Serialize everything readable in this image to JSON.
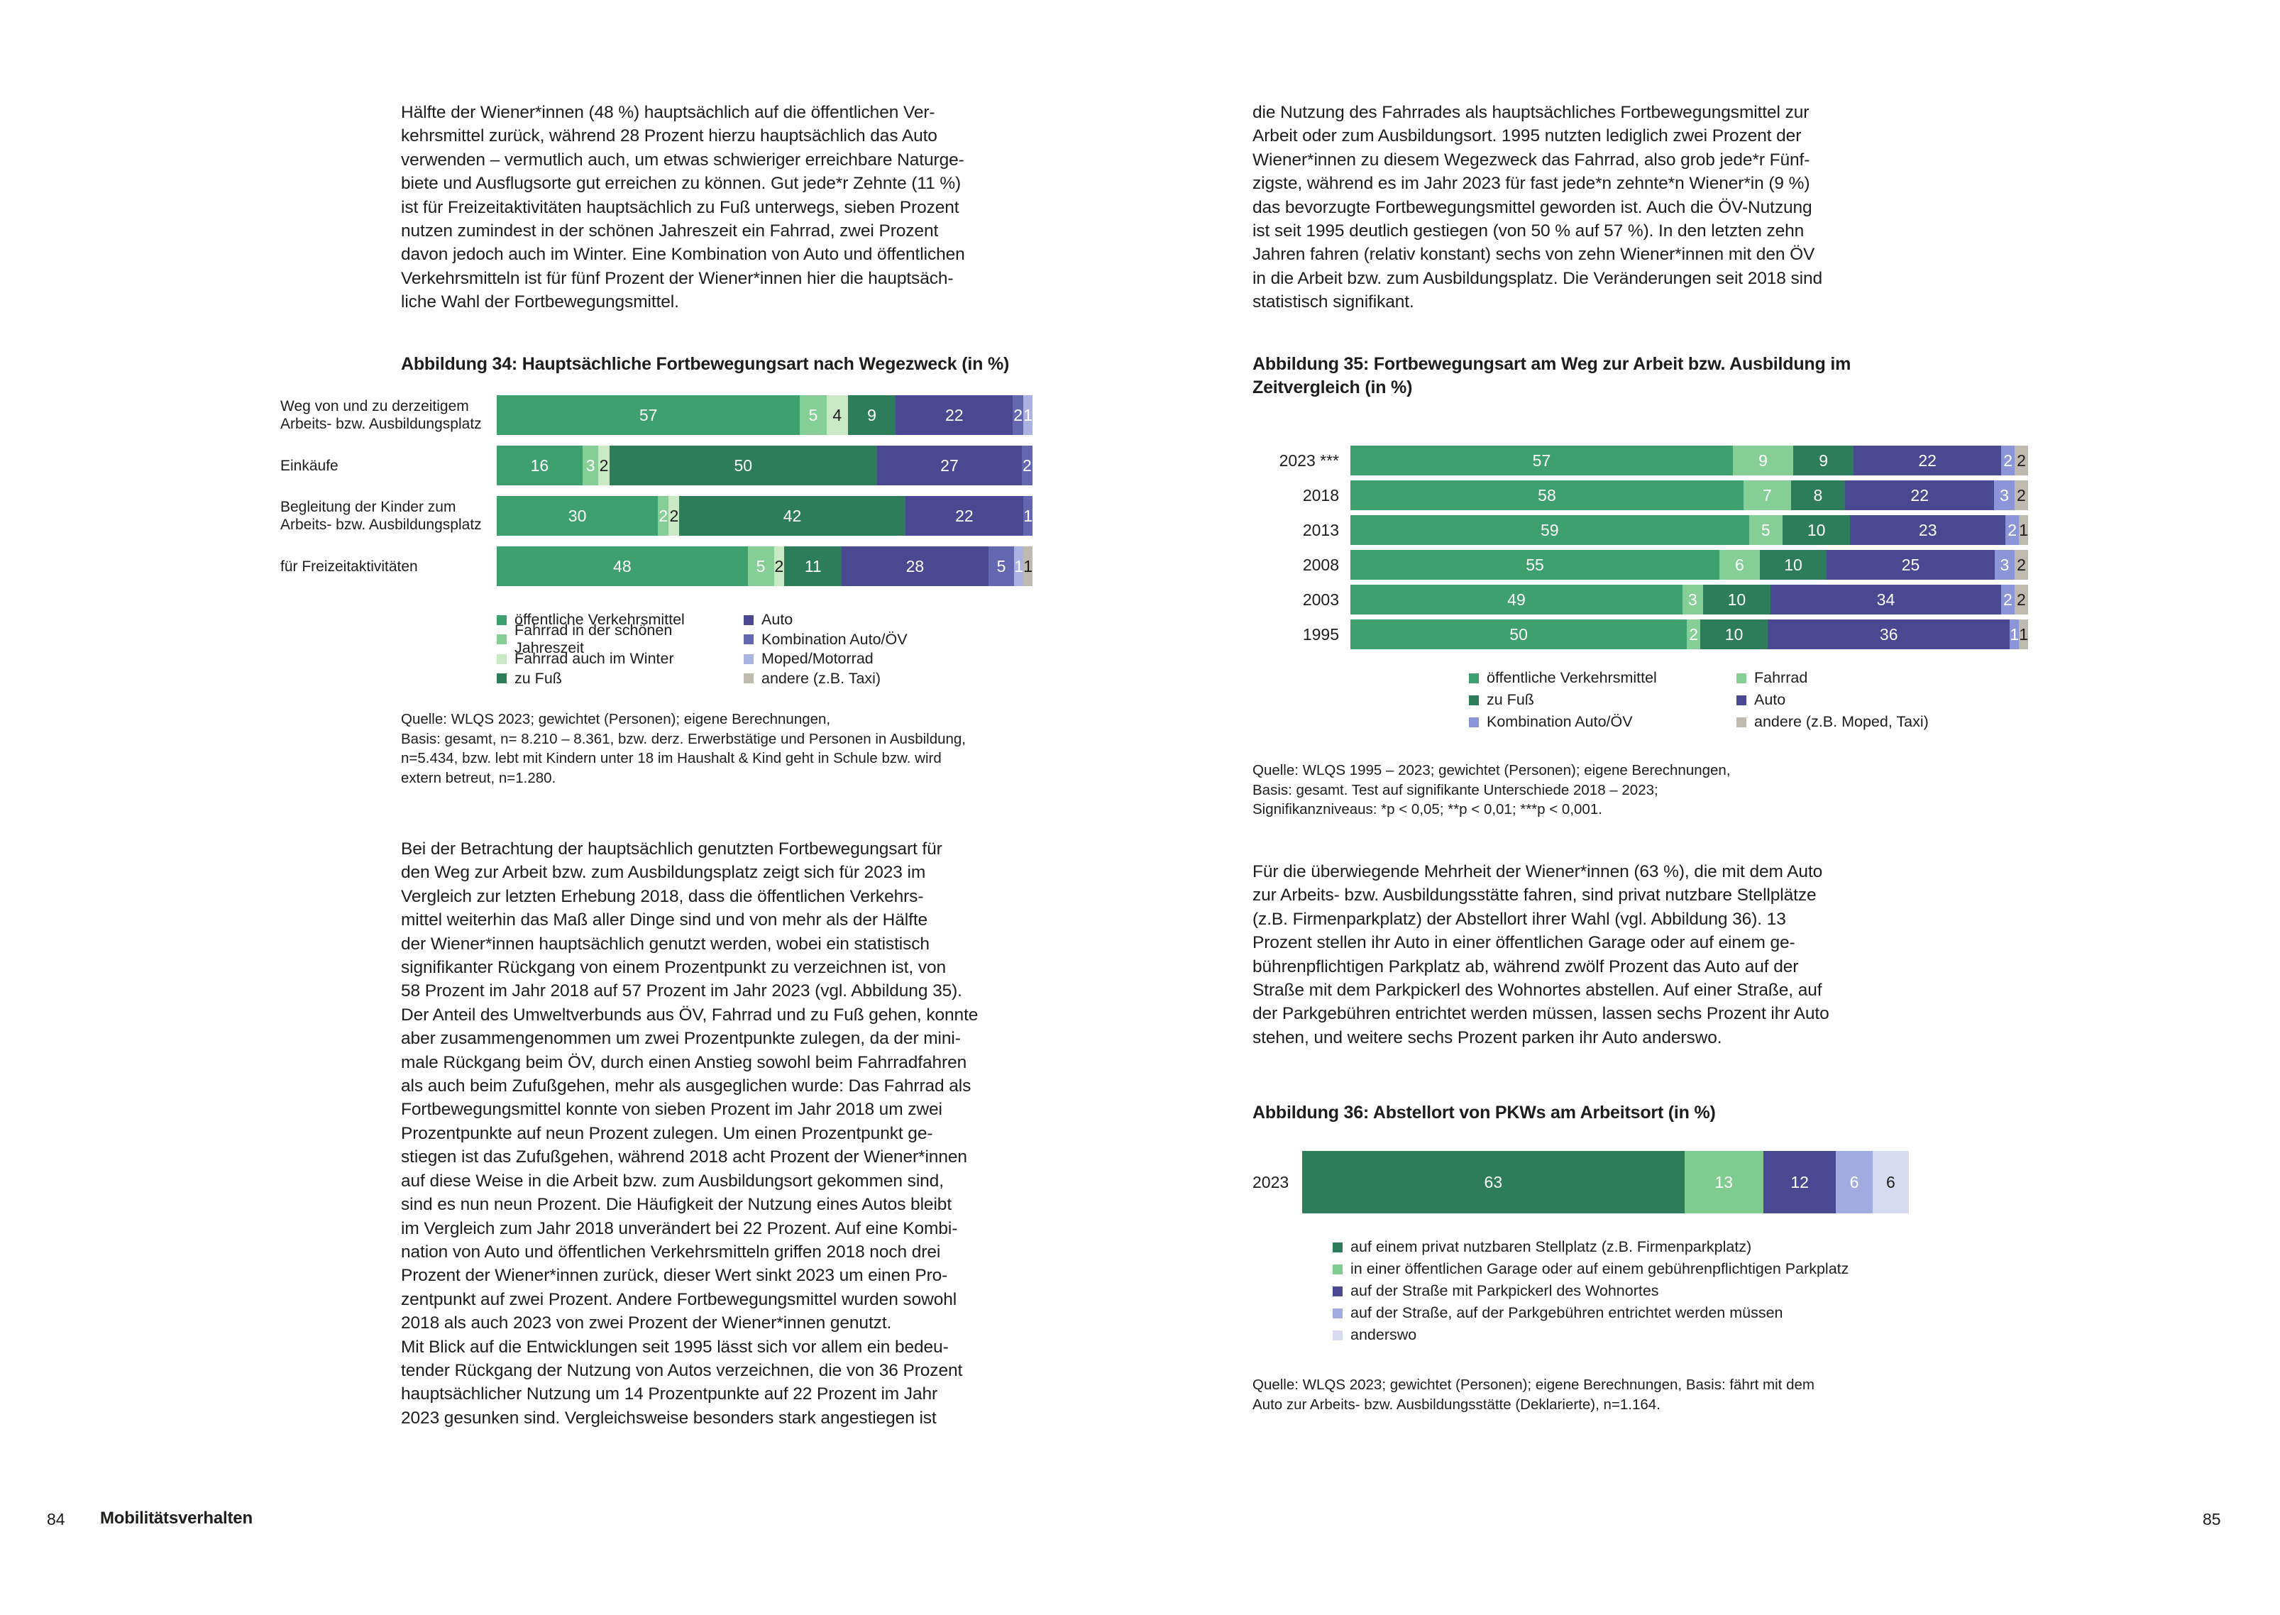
{
  "left_page": {
    "page_number": "84",
    "footer_label": "Mobilitätsverhalten",
    "paragraph1": "Hälfte der Wiener*innen (48 %) hauptsächlich auf die öffentlichen Ver-\nkehrsmittel zurück, während 28 Prozent hierzu hauptsächlich das Auto\nverwenden – vermutlich auch, um etwas schwieriger erreichbare Naturge-\nbiete und Ausflugsorte gut erreichen zu können. Gut jede*r Zehnte (11 %)\nist für Freizeitaktivitäten hauptsächlich zu Fuß unterwegs, sieben Prozent\nnutzen zumindest in der schönen Jahreszeit ein Fahrrad, zwei Prozent\ndavon jedoch auch im Winter. Eine Kombination von Auto und öffentlichen\nVerkehrsmitteln ist für fünf Prozent der Wiener*innen hier die hauptsäch-\nliche Wahl der Fortbewegungsmittel.",
    "paragraph2": "Bei der Betrachtung der hauptsächlich genutzten Fortbewegungsart für\nden Weg zur Arbeit bzw. zum Ausbildungsplatz zeigt sich für 2023 im\nVergleich zur letzten Erhebung 2018, dass die öffentlichen Verkehrs-\nmittel weiterhin das Maß aller Dinge sind und von mehr als der Hälfte\nder Wiener*innen hauptsächlich genutzt werden, wobei ein statistisch\nsignifikanter Rückgang von einem Prozentpunkt zu verzeichnen ist, von\n58 Prozent im Jahr 2018 auf 57 Prozent im Jahr 2023 (vgl. Abbildung 35).\nDer Anteil des Umweltverbunds aus ÖV, Fahrrad und zu Fuß gehen, konnte\naber zusammengenommen um zwei Prozentpunkte zulegen, da der mini-\nmale Rückgang beim ÖV, durch einen Anstieg sowohl beim Fahrradfahren\nals auch beim Zufußgehen, mehr als ausgeglichen wurde: Das Fahrrad als\nFortbewegungsmittel konnte von sieben Prozent im Jahr 2018 um zwei\nProzentpunkte auf neun Prozent zulegen. Um einen Prozentpunkt ge-\nstiegen ist das Zufußgehen, während 2018 acht Prozent der Wiener*innen\nauf diese Weise in die Arbeit bzw. zum Ausbildungsort gekommen sind,\nsind es nun neun Prozent. Die Häufigkeit der Nutzung eines Autos bleibt\nim Vergleich zum Jahr 2018 unverändert bei 22 Prozent. Auf eine Kombi-\nnation von Auto und öffentlichen Verkehrsmitteln griffen 2018 noch drei\nProzent der Wiener*innen zurück, dieser Wert sinkt 2023 um einen Pro-\nzentpunkt auf zwei Prozent. Andere Fortbewegungsmittel wurden sowohl\n2018 als auch 2023 von zwei Prozent der Wiener*innen genutzt.\nMit Blick auf die Entwicklungen seit 1995 lässt sich vor allem ein bedeu-\ntender Rückgang der Nutzung von Autos verzeichnen, die von 36 Prozent\nhauptsächlicher Nutzung um 14 Prozentpunkte auf 22 Prozent im Jahr\n2023 gesunken sind. Vergleichsweise besonders stark angestiegen ist",
    "figure34": {
      "title": "Abbildung 34: Hauptsächliche Fortbewegungsart nach Wegezweck (in %)",
      "categories": [
        {
          "label": "öffentliche Verkehrsmittel",
          "color": "#3EA06F",
          "text": "#ffffff"
        },
        {
          "label": "Fahrrad in der schönen Jahreszeit",
          "color": "#85CF96",
          "text": "#ffffff"
        },
        {
          "label": "Fahrrad auch im Winter",
          "color": "#C9E9C4",
          "text": "#1d1d1b"
        },
        {
          "label": "zu Fuß",
          "color": "#2E7D5A",
          "text": "#ffffff"
        },
        {
          "label": "Auto",
          "color": "#4A4891",
          "text": "#ffffff"
        },
        {
          "label": "Kombination Auto/ÖV",
          "color": "#6367AF",
          "text": "#ffffff"
        },
        {
          "label": "Moped/Motorrad",
          "color": "#A9B2E1",
          "text": "#ffffff"
        },
        {
          "label": "andere (z.B. Taxi)",
          "color": "#BEBAB0",
          "text": "#1d1d1b"
        }
      ],
      "rows": [
        {
          "label": "Weg von und zu derzeitigem\nArbeits- bzw. Ausbildungsplatz",
          "values": [
            57,
            5,
            4,
            9,
            22,
            2,
            1,
            0
          ]
        },
        {
          "label": "Einkäufe",
          "values": [
            16,
            3,
            2,
            50,
            27,
            2,
            0,
            0
          ]
        },
        {
          "label": "Begleitung der Kinder zum\nArbeits- bzw. Ausbildungsplatz",
          "values": [
            30,
            2,
            2,
            42,
            22,
            1,
            0,
            0
          ]
        },
        {
          "label": "für Freizeitaktivitäten",
          "values": [
            48,
            5,
            2,
            11,
            28,
            5,
            1,
            1
          ]
        }
      ],
      "source": "Quelle: WLQS 2023; gewichtet (Personen); eigene Berechnungen,\nBasis: gesamt, n= 8.210 – 8.361, bzw. derz. Erwerbstätige und Personen in Ausbildung,\nn=5.434, bzw. lebt mit Kindern unter 18 im Haushalt & Kind geht in Schule bzw. wird\nextern betreut, n=1.280."
    }
  },
  "right_page": {
    "page_number": "85",
    "paragraph1": "die Nutzung des Fahrrades als hauptsächliches Fortbewegungsmittel zur\nArbeit oder zum Ausbildungsort. 1995 nutzten lediglich zwei Prozent der\nWiener*innen zu diesem Wegezweck das Fahrrad, also grob jede*r Fünf-\nzigste, während es im Jahr 2023 für fast jede*n zehnte*n Wiener*in (9 %)\ndas bevorzugte Fortbewegungsmittel geworden ist. Auch die ÖV-Nutzung\nist seit 1995 deutlich gestiegen (von 50 % auf 57 %). In den letzten zehn\nJahren fahren (relativ konstant) sechs von zehn Wiener*innen mit den ÖV\nin die Arbeit bzw. zum Ausbildungsplatz. Die Veränderungen seit 2018 sind\nstatistisch signifikant.",
    "paragraph2": "Für die überwiegende Mehrheit der Wiener*innen (63 %), die mit dem Auto\nzur Arbeits- bzw. Ausbildungsstätte fahren, sind privat nutzbare Stellplätze\n(z.B. Firmenparkplatz) der Abstellort ihrer Wahl (vgl. Abbildung 36). 13\nProzent stellen ihr Auto in einer öffentlichen Garage oder auf einem ge-\nbührenpflichtigen Parkplatz ab, während zwölf Prozent das Auto auf der\nStraße mit dem Parkpickerl des Wohnortes abstellen. Auf einer Straße, auf\nder Parkgebühren entrichtet werden müssen, lassen sechs Prozent ihr Auto\nstehen, und weitere sechs Prozent parken ihr Auto anderswo.",
    "figure35": {
      "title": "Abbildung 35: Fortbewegungsart am Weg zur Arbeit bzw. Ausbildung im\nZeitvergleich (in %)",
      "categories": [
        {
          "label": "öffentliche Verkehrsmittel",
          "color": "#3EA06F",
          "text": "#ffffff"
        },
        {
          "label": "Fahrrad",
          "color": "#85CF96",
          "text": "#ffffff"
        },
        {
          "label": "zu Fuß",
          "color": "#2E7D5A",
          "text": "#ffffff"
        },
        {
          "label": "Auto",
          "color": "#4A4891",
          "text": "#ffffff"
        },
        {
          "label": "Kombination Auto/ÖV",
          "color": "#8B95D7",
          "text": "#ffffff"
        },
        {
          "label": "andere (z.B. Moped, Taxi)",
          "color": "#BEBAB0",
          "text": "#1d1d1b"
        }
      ],
      "rows": [
        {
          "label": "2023 ***",
          "values": [
            57,
            9,
            9,
            22,
            2,
            2
          ]
        },
        {
          "label": "2018",
          "values": [
            58,
            7,
            8,
            22,
            3,
            2
          ]
        },
        {
          "label": "2013",
          "values": [
            59,
            5,
            10,
            23,
            2,
            1
          ]
        },
        {
          "label": "2008",
          "values": [
            55,
            6,
            10,
            25,
            3,
            2
          ]
        },
        {
          "label": "2003",
          "values": [
            49,
            3,
            10,
            34,
            2,
            2
          ]
        },
        {
          "label": "1995",
          "values": [
            50,
            2,
            10,
            36,
            1,
            1
          ]
        }
      ],
      "source": "Quelle: WLQS 1995 – 2023; gewichtet (Personen); eigene Berechnungen,\nBasis: gesamt. Test auf signifikante Unterschiede 2018 – 2023;\nSignifikanzniveaus: *p < 0,05; **p < 0,01; ***p < 0,001."
    },
    "figure36": {
      "title": "Abbildung 36: Abstellort von PKWs am Arbeitsort (in %)",
      "categories": [
        {
          "label": "auf einem privat nutzbaren Stellplatz (z.B. Firmenparkplatz)",
          "color": "#2E7D5A",
          "text": "#ffffff"
        },
        {
          "label": "in einer öffentlichen Garage oder auf einem gebührenpflichtigen Parkplatz",
          "color": "#7FCB90",
          "text": "#ffffff"
        },
        {
          "label": "auf der Straße mit Parkpickerl des Wohnortes",
          "color": "#4A4891",
          "text": "#ffffff"
        },
        {
          "label": "auf der Straße, auf der Parkgebühren entrichtet werden müssen",
          "color": "#A3ACE0",
          "text": "#ffffff"
        },
        {
          "label": "anderswo",
          "color": "#D7DAF1",
          "text": "#1d1d1b"
        }
      ],
      "rows": [
        {
          "label": "2023",
          "values": [
            63,
            13,
            12,
            6,
            6
          ]
        }
      ],
      "source": "Quelle: WLQS 2023; gewichtet (Personen); eigene Berechnungen, Basis: fährt mit dem\nAuto zur Arbeits- bzw. Ausbildungsstätte (Deklarierte), n=1.164."
    }
  },
  "chart_data": [
    {
      "type": "bar",
      "stacked": true,
      "orientation": "horizontal",
      "title": "Abbildung 34: Hauptsächliche Fortbewegungsart nach Wegezweck (in %)",
      "categories": [
        "Weg von und zu derzeitigem Arbeits- bzw. Ausbildungsplatz",
        "Einkäufe",
        "Begleitung der Kinder zum Arbeits- bzw. Ausbildungsplatz",
        "für Freizeitaktivitäten"
      ],
      "series": [
        {
          "name": "öffentliche Verkehrsmittel",
          "values": [
            57,
            16,
            30,
            48
          ]
        },
        {
          "name": "Fahrrad in der schönen Jahreszeit",
          "values": [
            5,
            3,
            2,
            5
          ]
        },
        {
          "name": "Fahrrad auch im Winter",
          "values": [
            4,
            2,
            2,
            2
          ]
        },
        {
          "name": "zu Fuß",
          "values": [
            9,
            50,
            42,
            11
          ]
        },
        {
          "name": "Auto",
          "values": [
            22,
            27,
            22,
            28
          ]
        },
        {
          "name": "Kombination Auto/ÖV",
          "values": [
            2,
            2,
            1,
            5
          ]
        },
        {
          "name": "Moped/Motorrad",
          "values": [
            1,
            0,
            0,
            1
          ]
        },
        {
          "name": "andere (z.B. Taxi)",
          "values": [
            0,
            0,
            0,
            1
          ]
        }
      ],
      "xlim": [
        0,
        100
      ],
      "legend_position": "bottom",
      "grid": false
    },
    {
      "type": "bar",
      "stacked": true,
      "orientation": "horizontal",
      "title": "Abbildung 35: Fortbewegungsart am Weg zur Arbeit bzw. Ausbildung im Zeitvergleich (in %)",
      "categories": [
        "2023 ***",
        "2018",
        "2013",
        "2008",
        "2003",
        "1995"
      ],
      "series": [
        {
          "name": "öffentliche Verkehrsmittel",
          "values": [
            57,
            58,
            59,
            55,
            49,
            50
          ]
        },
        {
          "name": "Fahrrad",
          "values": [
            9,
            7,
            5,
            6,
            3,
            2
          ]
        },
        {
          "name": "zu Fuß",
          "values": [
            9,
            8,
            10,
            10,
            10,
            10
          ]
        },
        {
          "name": "Auto",
          "values": [
            22,
            22,
            23,
            25,
            34,
            36
          ]
        },
        {
          "name": "Kombination Auto/ÖV",
          "values": [
            2,
            3,
            2,
            3,
            2,
            1
          ]
        },
        {
          "name": "andere (z.B. Moped, Taxi)",
          "values": [
            2,
            2,
            1,
            2,
            2,
            1
          ]
        }
      ],
      "xlim": [
        0,
        100
      ],
      "legend_position": "bottom",
      "grid": false
    },
    {
      "type": "bar",
      "stacked": true,
      "orientation": "horizontal",
      "title": "Abbildung 36: Abstellort von PKWs am Arbeitsort (in %)",
      "categories": [
        "2023"
      ],
      "series": [
        {
          "name": "auf einem privat nutzbaren Stellplatz (z.B. Firmenparkplatz)",
          "values": [
            63
          ]
        },
        {
          "name": "in einer öffentlichen Garage oder auf einem gebührenpflichtigen Parkplatz",
          "values": [
            13
          ]
        },
        {
          "name": "auf der Straße mit Parkpickerl des Wohnortes",
          "values": [
            12
          ]
        },
        {
          "name": "auf der Straße, auf der Parkgebühren entrichtet werden müssen",
          "values": [
            6
          ]
        },
        {
          "name": "anderswo",
          "values": [
            6
          ]
        }
      ],
      "xlim": [
        0,
        100
      ],
      "legend_position": "bottom",
      "grid": false
    }
  ]
}
